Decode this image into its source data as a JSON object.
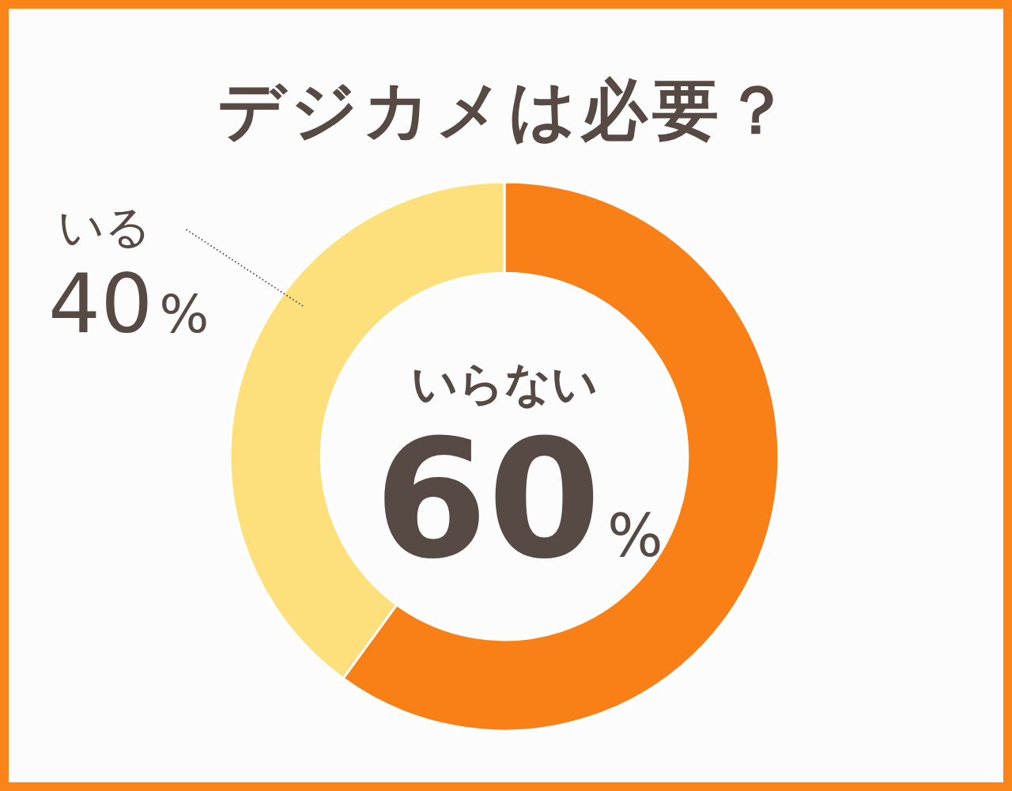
{
  "chart_data": {
    "type": "donut",
    "title": "デジカメは必要？",
    "categories": [
      "いらない",
      "いる"
    ],
    "values": [
      60,
      40
    ],
    "colors": [
      "#f98016",
      "#fde07c"
    ],
    "value_labels": [
      "60%",
      "40%"
    ]
  }
}
